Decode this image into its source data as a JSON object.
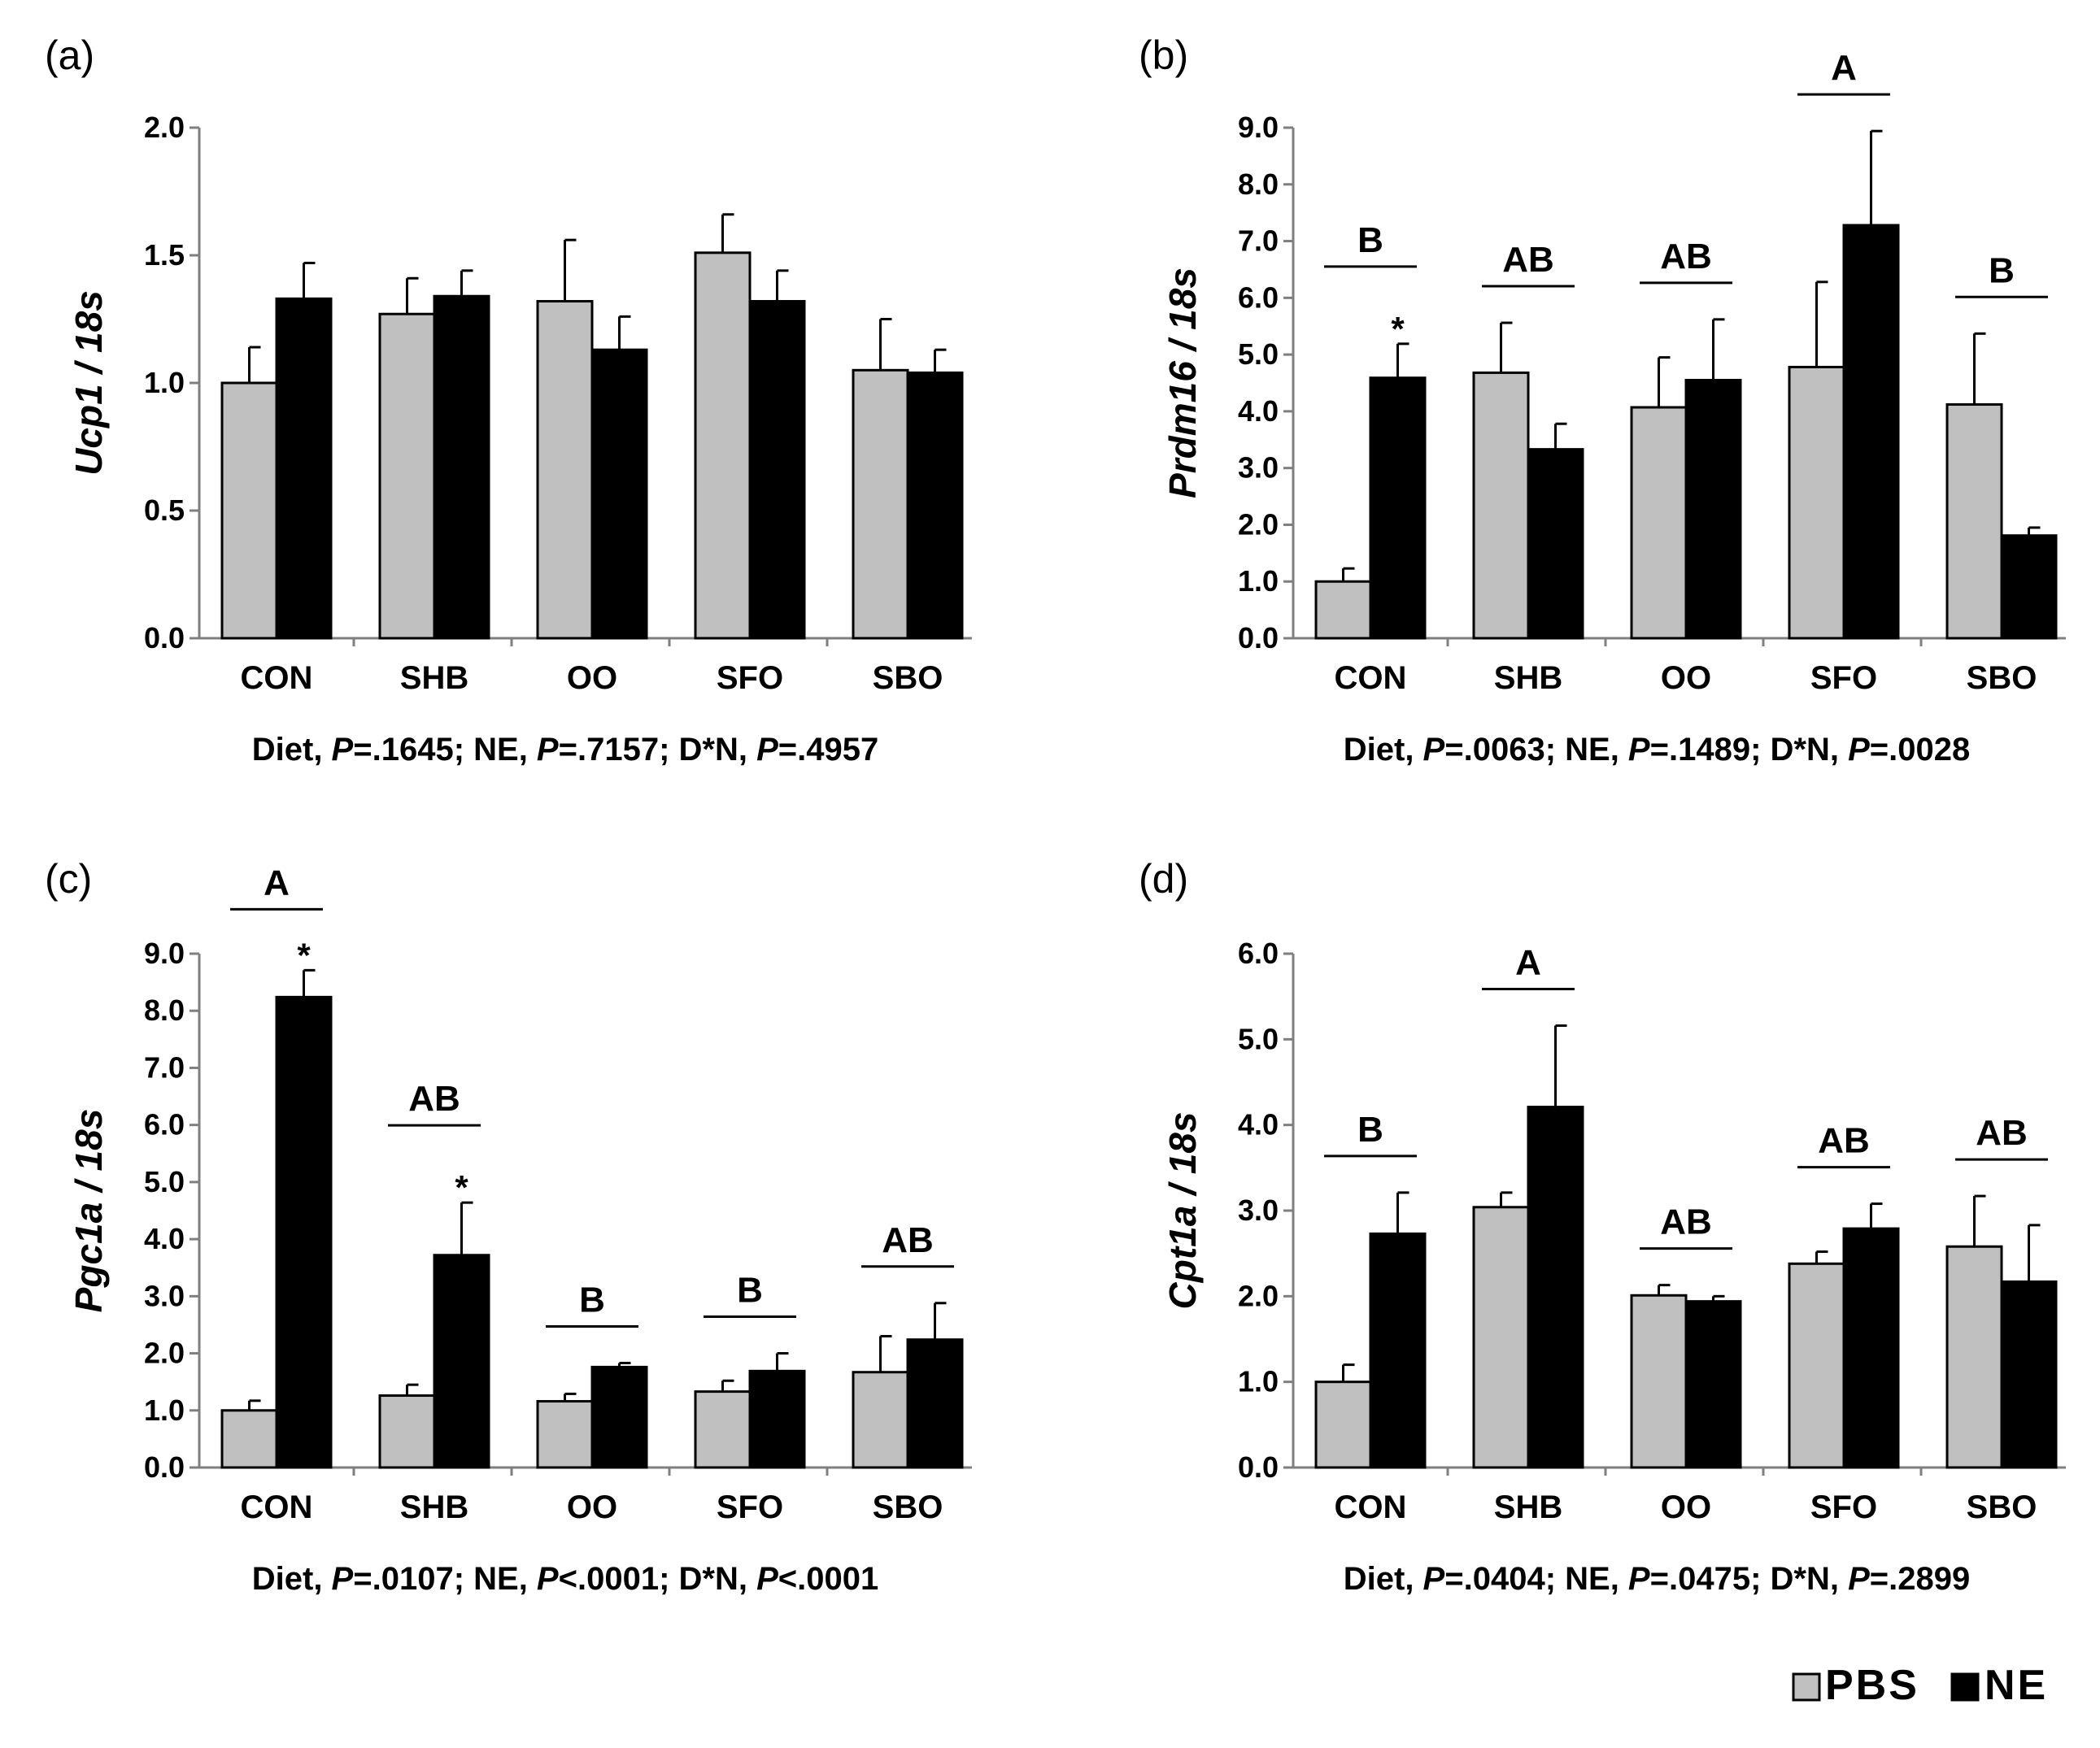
{
  "colors": {
    "pbs": "#c0c0c0",
    "ne": "#000000",
    "axis": "#7f7f7f"
  },
  "legend": {
    "pbs": "PBS",
    "ne": "NE"
  },
  "chart_data": [
    {
      "panel": "(a)",
      "type": "bar",
      "ylabel": "Ucp1 / 18s",
      "ylim": [
        0,
        2.0
      ],
      "ticks": [
        "0.0",
        "0.5",
        "1.0",
        "1.5",
        "2.0"
      ],
      "categories": [
        "CON",
        "SHB",
        "OO",
        "SFO",
        "SBO"
      ],
      "series": [
        {
          "name": "PBS",
          "values": [
            1.0,
            1.27,
            1.32,
            1.51,
            1.05
          ],
          "errors": [
            0.14,
            0.14,
            0.24,
            0.15,
            0.2
          ]
        },
        {
          "name": "NE",
          "values": [
            1.33,
            1.34,
            1.13,
            1.32,
            1.04
          ],
          "errors": [
            0.14,
            0.1,
            0.13,
            0.12,
            0.09
          ]
        }
      ],
      "groups": [],
      "stars": [],
      "caption": [
        {
          "t": "Diet, "
        },
        {
          "t": "P",
          "i": true
        },
        {
          "t": "=.1645; NE, "
        },
        {
          "t": "P",
          "i": true
        },
        {
          "t": "=.7157; D*N, "
        },
        {
          "t": "P",
          "i": true
        },
        {
          "t": "=.4957"
        }
      ]
    },
    {
      "panel": "(b)",
      "type": "bar",
      "ylabel": "Prdm16 / 18s",
      "ylim": [
        0,
        9.0
      ],
      "ticks": [
        "0.0",
        "1.0",
        "2.0",
        "3.0",
        "4.0",
        "5.0",
        "6.0",
        "7.0",
        "8.0",
        "9.0"
      ],
      "categories": [
        "CON",
        "SHB",
        "OO",
        "SFO",
        "SBO"
      ],
      "series": [
        {
          "name": "PBS",
          "values": [
            1.0,
            4.68,
            4.07,
            4.78,
            4.12
          ],
          "errors": [
            0.23,
            0.88,
            0.88,
            1.5,
            1.25
          ]
        },
        {
          "name": "NE",
          "values": [
            4.59,
            3.33,
            4.55,
            7.28,
            1.81
          ],
          "errors": [
            0.6,
            0.45,
            1.07,
            1.66,
            0.14
          ]
        }
      ],
      "groups": [
        "B",
        "AB",
        "AB",
        "A",
        "B"
      ],
      "stars": [
        "*",
        "",
        "",
        "",
        ""
      ],
      "caption": [
        {
          "t": "Diet, "
        },
        {
          "t": "P",
          "i": true
        },
        {
          "t": "=.0063; NE, "
        },
        {
          "t": "P",
          "i": true
        },
        {
          "t": "=.1489; D*N, "
        },
        {
          "t": "P",
          "i": true
        },
        {
          "t": "=.0028"
        }
      ]
    },
    {
      "panel": "(c)",
      "type": "bar",
      "ylabel": "Pgc1a / 18s",
      "ylim": [
        0,
        9.0
      ],
      "ticks": [
        "0.0",
        "1.0",
        "2.0",
        "3.0",
        "4.0",
        "5.0",
        "6.0",
        "7.0",
        "8.0",
        "9.0"
      ],
      "categories": [
        "CON",
        "SHB",
        "OO",
        "SFO",
        "SBO"
      ],
      "series": [
        {
          "name": "PBS",
          "values": [
            1.0,
            1.26,
            1.16,
            1.33,
            1.67
          ],
          "errors": [
            0.17,
            0.19,
            0.13,
            0.19,
            0.63
          ]
        },
        {
          "name": "NE",
          "values": [
            8.24,
            3.72,
            1.76,
            1.69,
            2.24
          ],
          "errors": [
            0.47,
            0.92,
            0.07,
            0.31,
            0.64
          ]
        }
      ],
      "groups": [
        "A",
        "AB",
        "B",
        "B",
        "AB"
      ],
      "stars": [
        "*",
        "*",
        "",
        "",
        ""
      ],
      "caption": [
        {
          "t": "Diet, "
        },
        {
          "t": "P",
          "i": true
        },
        {
          "t": "=.0107; NE, "
        },
        {
          "t": "P",
          "i": true
        },
        {
          "t": "<.0001; D*N, "
        },
        {
          "t": "P",
          "i": true
        },
        {
          "t": "<.0001"
        }
      ]
    },
    {
      "panel": "(d)",
      "type": "bar",
      "ylabel": "Cpt1a / 18s",
      "ylim": [
        0,
        6.0
      ],
      "ticks": [
        "0.0",
        "1.0",
        "2.0",
        "3.0",
        "4.0",
        "5.0",
        "6.0"
      ],
      "categories": [
        "CON",
        "SHB",
        "OO",
        "SFO",
        "SBO"
      ],
      "series": [
        {
          "name": "PBS",
          "values": [
            1.0,
            3.04,
            2.01,
            2.38,
            2.58
          ],
          "errors": [
            0.2,
            0.17,
            0.12,
            0.14,
            0.59
          ]
        },
        {
          "name": "NE",
          "values": [
            2.73,
            4.21,
            1.94,
            2.79,
            2.17
          ],
          "errors": [
            0.48,
            0.95,
            0.06,
            0.29,
            0.66
          ]
        }
      ],
      "groups": [
        "B",
        "A",
        "AB",
        "AB",
        "AB"
      ],
      "stars": [
        "",
        "",
        "",
        "",
        ""
      ],
      "caption": [
        {
          "t": "Diet, "
        },
        {
          "t": "P",
          "i": true
        },
        {
          "t": "=.0404; NE, "
        },
        {
          "t": "P",
          "i": true
        },
        {
          "t": "=.0475; D*N, "
        },
        {
          "t": "P",
          "i": true
        },
        {
          "t": "=.2899"
        }
      ]
    }
  ]
}
